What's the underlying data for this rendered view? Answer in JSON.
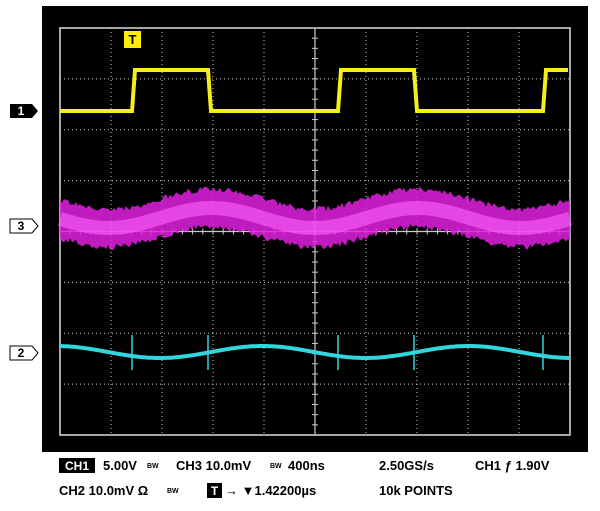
{
  "screen": {
    "trigger_marker": "T",
    "channel_markers": [
      "1",
      "3",
      "2"
    ]
  },
  "readout": {
    "line1": {
      "ch1_badge": "CH1",
      "ch1_scale": "5.00V",
      "ch1_bw": "BW",
      "ch3_scale": "CH3 10.0mV",
      "ch3_bw": "BW",
      "timebase": "400ns",
      "sample_rate": "2.50GS/s",
      "trigger": "CH1 ƒ 1.90V"
    },
    "line2": {
      "ch2_scale": "CH2 10.0mV Ω",
      "ch2_bw": "BW",
      "trigger_badge": "T",
      "trigger_pos": "→ ▼1.42200µs",
      "points": "10k POINTS"
    }
  }
}
